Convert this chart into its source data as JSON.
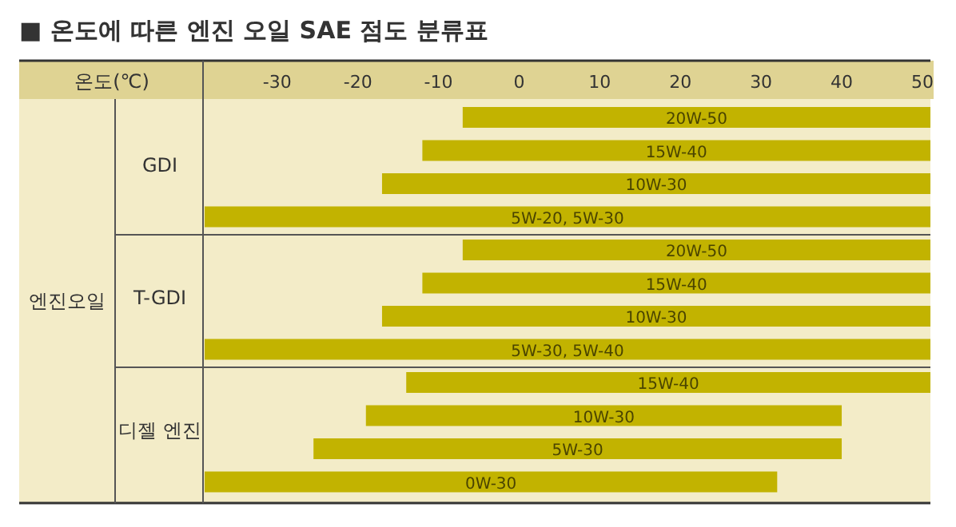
{
  "chart_data": {
    "type": "bar",
    "orientation": "horizontal",
    "title": "■ 온도에 따른 엔진 오일 SAE 점도 분류표",
    "xlabel": "온도(℃)",
    "categories": [
      "20W-50",
      "15W-40",
      "10W-30",
      "5W-20, 5W-30",
      "20W-50",
      "15W-40",
      "10W-30",
      "5W-30, 5W-40",
      "15W-40",
      "10W-30",
      "5W-30",
      "0W-30"
    ],
    "base": [
      -7,
      -12,
      -17,
      -39,
      -7,
      -12,
      -17,
      -39,
      -14,
      -19,
      -25.5,
      -39
    ],
    "values": [
      58,
      63,
      68,
      90,
      58,
      63,
      68,
      90,
      65,
      59,
      65.5,
      71
    ],
    "color": "#c2b300",
    "xlim": [
      -39,
      51
    ],
    "xticks": [
      -30,
      -20,
      -10,
      0,
      10,
      20,
      30,
      40,
      50
    ],
    "annotations": [
      "엔진오일",
      "GDI",
      "T-GDI",
      "디젤 엔진"
    ]
  }
}
